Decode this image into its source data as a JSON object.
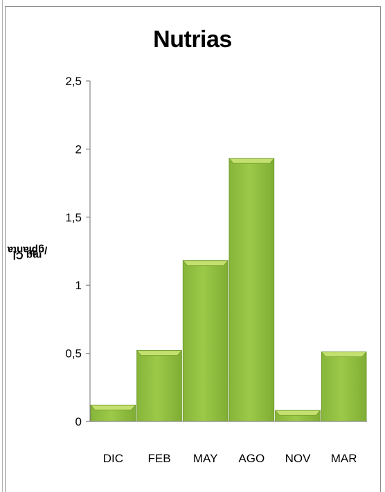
{
  "chart_data": {
    "type": "bar",
    "title": "Nutrias",
    "ylabel_parts": [
      "mg Cl ",
      "a",
      "/gplanta"
    ],
    "categories": [
      "DIC",
      "FEB",
      "MAY",
      "AGO",
      "NOV",
      "MAR"
    ],
    "values": [
      0.12,
      0.52,
      1.18,
      1.93,
      0.08,
      0.51
    ],
    "yticks": [
      "0",
      "0,5",
      "1",
      "1,5",
      "2",
      "2,5"
    ],
    "ylim": [
      0,
      2.5
    ],
    "grid": false,
    "legend": "none",
    "bar_color": "#92c040",
    "bar_top_color": "#c4e06e",
    "bar_border_color": "#6f9a2a"
  }
}
